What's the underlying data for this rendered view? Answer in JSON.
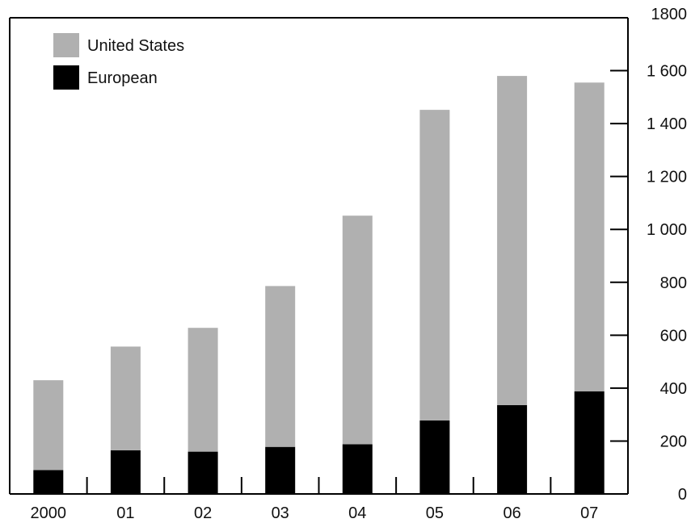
{
  "chart_data": {
    "type": "bar",
    "stacked": true,
    "categories": [
      "2000",
      "01",
      "02",
      "03",
      "04",
      "05",
      "06",
      "07"
    ],
    "series": [
      {
        "name": "European",
        "values": [
          90,
          165,
          160,
          178,
          188,
          278,
          336,
          388
        ],
        "color": "#000000"
      },
      {
        "name": "United States",
        "values": [
          340,
          392,
          468,
          608,
          864,
          1174,
          1244,
          1167
        ],
        "color": "#b0b0b0"
      }
    ],
    "totals": [
      430,
      557,
      628,
      786,
      1052,
      1452,
      1580,
      1555
    ],
    "ylim": [
      0,
      1800
    ],
    "y_ticks": [
      0,
      200,
      400,
      600,
      800,
      1000,
      1200,
      1400,
      1600,
      1800
    ],
    "y_tick_labels": [
      "0",
      "200",
      "400",
      "600",
      "800",
      "1 000",
      "1 200",
      "1 400",
      "1 600",
      "1800"
    ],
    "y_axis_side": "right",
    "grid": false,
    "legend_position": "top-left",
    "legend": [
      "United States",
      "European"
    ]
  }
}
